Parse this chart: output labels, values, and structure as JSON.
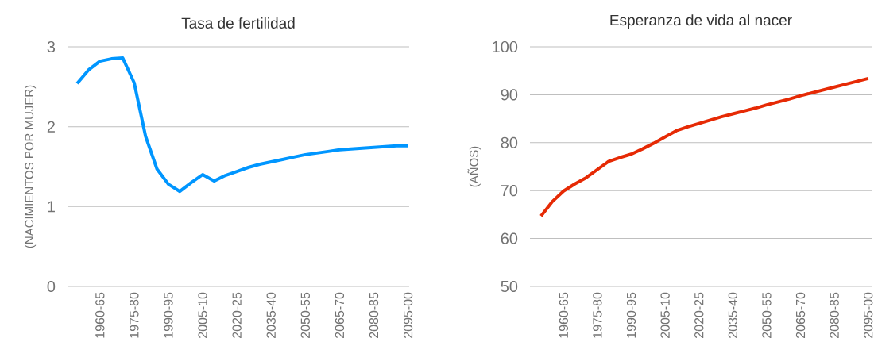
{
  "chart_data": [
    {
      "type": "line",
      "title": "Tasa de fertilidad",
      "ylabel": "(NACIMIENTOS POR MUJER)",
      "categories": [
        null,
        null,
        "1960-65",
        null,
        null,
        "1975-80",
        null,
        null,
        "1990-95",
        null,
        null,
        "2005-10",
        null,
        null,
        "2020-25",
        null,
        null,
        "2035-40",
        null,
        null,
        "2050-55",
        null,
        null,
        "2065-70",
        null,
        null,
        "2080-85",
        null,
        null,
        "2095-00"
      ],
      "series": [
        {
          "color": "#0096ff",
          "values": [
            2.54,
            2.71,
            2.82,
            2.85,
            2.86,
            2.55,
            1.88,
            1.47,
            1.28,
            1.19,
            1.3,
            1.4,
            1.32,
            1.39,
            1.44,
            1.49,
            1.53,
            1.56,
            1.59,
            1.62,
            1.65,
            1.67,
            1.69,
            1.71,
            1.72,
            1.73,
            1.74,
            1.75,
            1.76,
            1.76
          ]
        }
      ],
      "ylim": [
        0,
        3
      ],
      "yticks": [
        0,
        1,
        2,
        3
      ],
      "grid": "y",
      "marker": "none",
      "line_style": "solid"
    },
    {
      "type": "line",
      "title": "Esperanza de vida al nacer",
      "ylabel": "(AÑOS)",
      "categories": [
        null,
        null,
        "1960-65",
        null,
        null,
        "1975-80",
        null,
        null,
        "1990-95",
        null,
        null,
        "2005-10",
        null,
        null,
        "2020-25",
        null,
        null,
        "2035-40",
        null,
        null,
        "2050-55",
        null,
        null,
        "2065-70",
        null,
        null,
        "2080-85",
        null,
        null,
        "2095-00"
      ],
      "series": [
        {
          "color": "#e62a05",
          "values": [
            64.7,
            67.7,
            69.9,
            71.4,
            72.7,
            74.4,
            76.1,
            76.9,
            77.6,
            78.7,
            79.9,
            81.2,
            82.5,
            83.3,
            84.0,
            84.7,
            85.4,
            86.0,
            86.6,
            87.2,
            87.9,
            88.5,
            89.1,
            89.8,
            90.4,
            91.0,
            91.6,
            92.2,
            92.8,
            93.4
          ]
        }
      ],
      "ylim": [
        50,
        100
      ],
      "yticks": [
        50,
        60,
        70,
        80,
        90,
        100
      ],
      "grid": "y",
      "marker": "none",
      "line_style": "solid"
    }
  ]
}
